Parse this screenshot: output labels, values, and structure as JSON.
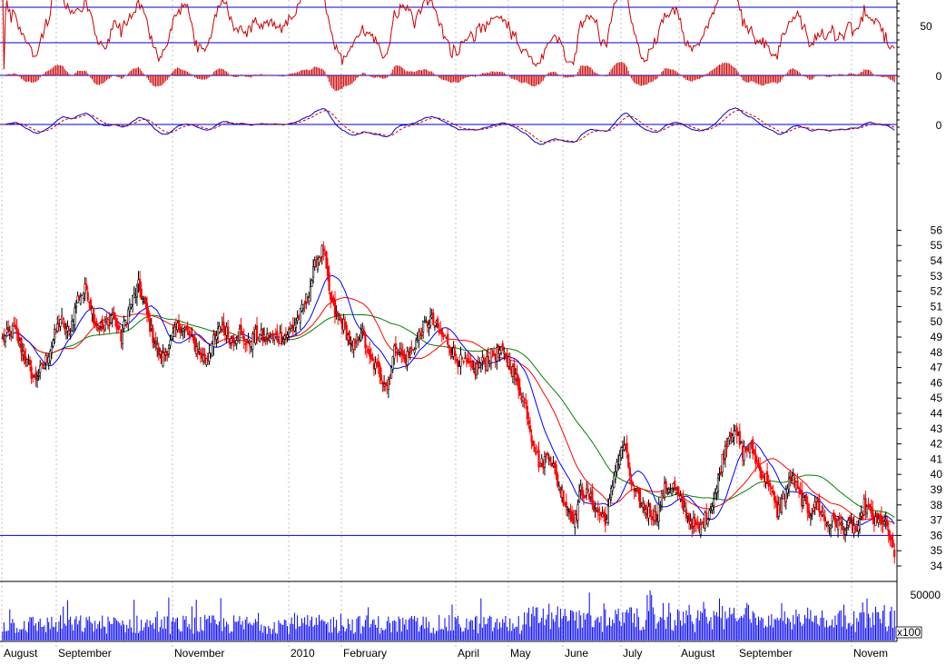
{
  "chart_data": {
    "type": "candlestick",
    "colors": {
      "up": "#000000",
      "down": "#ff0000",
      "ma_fast": "#0000ff",
      "ma_mid": "#ff0000",
      "ma_slow": "#008000",
      "rsi": "#cc0000",
      "macd_line": "#0000cc",
      "macd_signal": "#cc0000",
      "histogram": "#cc0000",
      "volume": "#0000ff",
      "grid": "#c0c0c0"
    },
    "x_axis": {
      "months": [
        "August",
        "September",
        "November",
        "2010",
        "February",
        "April",
        "May",
        "June",
        "July",
        "August",
        "September",
        "Novem"
      ]
    },
    "price_axis": {
      "ticks": [
        34,
        35,
        36,
        37,
        38,
        39,
        40,
        41,
        42,
        43,
        44,
        45,
        46,
        47,
        48,
        49,
        50,
        51,
        52,
        53,
        54,
        55,
        56
      ],
      "ylim": [
        34,
        56
      ],
      "support_level": 36
    },
    "rsi_axis": {
      "tick_label": "50",
      "upper": 70,
      "lower": 30
    },
    "histogram_axis": {
      "tick_label": "0"
    },
    "macd_axis": {
      "tick_label": "0"
    },
    "volume_axis": {
      "tick_label": "50000",
      "multiplier_label": "x100"
    },
    "price_keypoints": [
      [
        0,
        48.8
      ],
      [
        8,
        49.5
      ],
      [
        16,
        47.5
      ],
      [
        22,
        46.2
      ],
      [
        28,
        47.0
      ],
      [
        34,
        48.5
      ],
      [
        40,
        50.2
      ],
      [
        46,
        49.2
      ],
      [
        52,
        51.5
      ],
      [
        58,
        52.2
      ],
      [
        64,
        50.0
      ],
      [
        70,
        49.5
      ],
      [
        76,
        50.5
      ],
      [
        82,
        49.0
      ],
      [
        88,
        51.0
      ],
      [
        94,
        52.3
      ],
      [
        98,
        51.2
      ],
      [
        104,
        49.0
      ],
      [
        110,
        47.5
      ],
      [
        116,
        48.6
      ],
      [
        122,
        49.8
      ],
      [
        128,
        49.3
      ],
      [
        134,
        48.3
      ],
      [
        140,
        47.5
      ],
      [
        146,
        48.7
      ],
      [
        152,
        49.8
      ],
      [
        158,
        48.8
      ],
      [
        164,
        49.3
      ],
      [
        170,
        48.5
      ],
      [
        176,
        49.2
      ],
      [
        182,
        48.9
      ],
      [
        188,
        49.0
      ],
      [
        194,
        49.0
      ],
      [
        200,
        49.5
      ],
      [
        206,
        50.5
      ],
      [
        212,
        52.0
      ],
      [
        217,
        54.0
      ],
      [
        222,
        54.8
      ],
      [
        226,
        51.8
      ],
      [
        230,
        50.5
      ],
      [
        236,
        49.8
      ],
      [
        242,
        48.2
      ],
      [
        248,
        49.5
      ],
      [
        254,
        47.5
      ],
      [
        260,
        46.8
      ],
      [
        266,
        45.8
      ],
      [
        272,
        48.5
      ],
      [
        278,
        47.5
      ],
      [
        284,
        48.3
      ],
      [
        290,
        49.5
      ],
      [
        296,
        50.2
      ],
      [
        302,
        49.3
      ],
      [
        308,
        48.7
      ],
      [
        314,
        47.6
      ],
      [
        320,
        47.2
      ],
      [
        326,
        46.8
      ],
      [
        332,
        47.3
      ],
      [
        338,
        47.8
      ],
      [
        344,
        48.0
      ],
      [
        350,
        47.5
      ],
      [
        356,
        46.0
      ],
      [
        362,
        44.5
      ],
      [
        366,
        42.5
      ],
      [
        372,
        40.5
      ],
      [
        378,
        41.5
      ],
      [
        384,
        39.5
      ],
      [
        390,
        38.0
      ],
      [
        396,
        37.0
      ],
      [
        400,
        39.0
      ],
      [
        406,
        38.5
      ],
      [
        412,
        37.5
      ],
      [
        418,
        37.0
      ],
      [
        424,
        40.5
      ],
      [
        430,
        42.0
      ],
      [
        436,
        39.0
      ],
      [
        442,
        38.0
      ],
      [
        448,
        37.5
      ],
      [
        452,
        37.2
      ],
      [
        458,
        39.0
      ],
      [
        464,
        39.2
      ],
      [
        470,
        38.0
      ],
      [
        476,
        37.0
      ],
      [
        482,
        36.3
      ],
      [
        488,
        37.5
      ],
      [
        494,
        39.0
      ],
      [
        498,
        41.0
      ],
      [
        502,
        42.5
      ],
      [
        506,
        43.0
      ],
      [
        512,
        41.5
      ],
      [
        518,
        41.8
      ],
      [
        524,
        40.2
      ],
      [
        530,
        39.5
      ],
      [
        536,
        37.5
      ],
      [
        540,
        38.5
      ],
      [
        546,
        39.8
      ],
      [
        552,
        38.5
      ],
      [
        558,
        37.5
      ],
      [
        564,
        38.0
      ],
      [
        570,
        36.8
      ],
      [
        576,
        37.0
      ],
      [
        582,
        36.5
      ],
      [
        588,
        36.6
      ],
      [
        592,
        36.2
      ],
      [
        596,
        38.0
      ],
      [
        600,
        37.5
      ],
      [
        604,
        36.8
      ],
      [
        608,
        37.0
      ],
      [
        612,
        36.5
      ],
      [
        615,
        35.4
      ],
      [
        617,
        34.4
      ]
    ],
    "total_bars": 618
  }
}
